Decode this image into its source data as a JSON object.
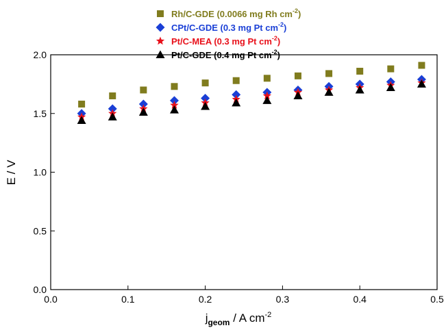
{
  "chart_data": {
    "type": "scatter",
    "title": "",
    "xlabel_main": "j",
    "xlabel_sub": "geom",
    "xlabel_rest": " / A cm",
    "xlabel_sup": "-2",
    "ylabel": "E / V",
    "xlim": [
      0.0,
      0.5
    ],
    "ylim": [
      0.0,
      2.0
    ],
    "xticks": [
      "0.0",
      "0.1",
      "0.2",
      "0.3",
      "0.4",
      "0.5"
    ],
    "yticks": [
      "0.0",
      "0.5",
      "1.0",
      "1.5",
      "2.0"
    ],
    "grid": false,
    "legend_position": "top-center",
    "x": [
      0.04,
      0.08,
      0.12,
      0.16,
      0.2,
      0.24,
      0.28,
      0.32,
      0.36,
      0.4,
      0.44,
      0.48
    ],
    "series": [
      {
        "name": "Rh/C-GDE (0.0066 mg Rh cm-2)",
        "legend_main": "Rh/C-GDE (0.0066 mg Rh cm",
        "legend_sup": "-2",
        "legend_end": ")",
        "marker": "square",
        "color": "#807c1e",
        "values": [
          1.58,
          1.65,
          1.7,
          1.73,
          1.76,
          1.78,
          1.8,
          1.82,
          1.84,
          1.86,
          1.88,
          1.91
        ]
      },
      {
        "name": "CPt/C-GDE (0.3 mg Pt cm-2)",
        "legend_main": "CPt/C-GDE (0.3 mg Pt cm",
        "legend_sup": "-2",
        "legend_end": ")",
        "marker": "diamond",
        "color": "#1a3fd6",
        "values": [
          1.5,
          1.54,
          1.58,
          1.61,
          1.63,
          1.66,
          1.68,
          1.7,
          1.73,
          1.75,
          1.77,
          1.79
        ]
      },
      {
        "name": "Pt/C-MEA (0.3 mg Pt cm-2)",
        "legend_main": "Pt/C-MEA (0.3 mg Pt cm",
        "legend_sup": "-2",
        "legend_end": ")",
        "marker": "star",
        "color": "#e8101a",
        "values": [
          1.47,
          1.5,
          1.54,
          1.57,
          1.59,
          1.62,
          1.65,
          1.68,
          1.7,
          1.72,
          1.74,
          1.76
        ]
      },
      {
        "name": "Pt/C-GDE (0.4 mg Pt cm-2)",
        "legend_main": "Pt/C-GDE (0.4 mg Pt cm",
        "legend_sup": "-2",
        "legend_end": ")",
        "marker": "triangle",
        "color": "#000000",
        "values": [
          1.44,
          1.47,
          1.51,
          1.53,
          1.56,
          1.59,
          1.61,
          1.65,
          1.68,
          1.7,
          1.72,
          1.75
        ]
      }
    ]
  }
}
